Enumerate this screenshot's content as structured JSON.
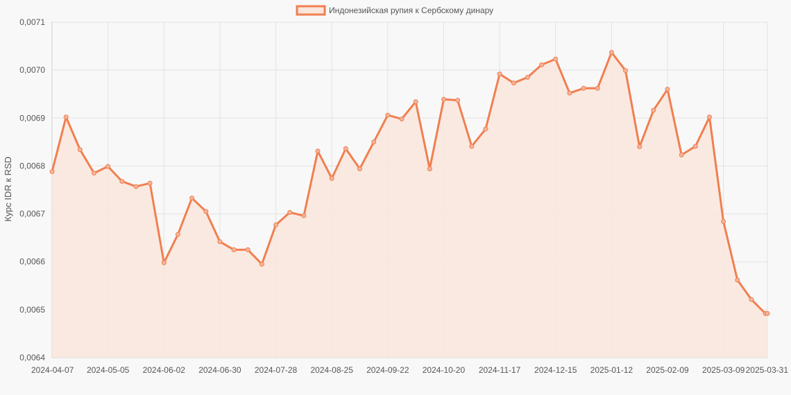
{
  "legend": {
    "label": "Индонезийская рупия к Сербскому динару"
  },
  "colors": {
    "line": "#f07f50",
    "fill": "#fae6dc",
    "point_fill": "#f6b49a"
  },
  "chart_data": {
    "type": "area",
    "title": "",
    "xlabel": "",
    "ylabel": "Курс IDR к RSD",
    "ylim": [
      0.0064,
      0.0071
    ],
    "yticks": [
      "0,0064",
      "0,0065",
      "0,0066",
      "0,0067",
      "0,0068",
      "0,0069",
      "0,0070",
      "0,0071"
    ],
    "xticks": [
      "2024-04-07",
      "2024-05-05",
      "2024-06-02",
      "2024-06-30",
      "2024-07-28",
      "2024-08-25",
      "2024-09-22",
      "2024-10-20",
      "2024-11-17",
      "2024-12-15",
      "2025-01-12",
      "2025-02-09",
      "2025-03-09",
      "2025-03-31"
    ],
    "grid": true,
    "legend_position": "top-center",
    "series": [
      {
        "name": "Индонезийская рупия к Сербскому динару",
        "x": [
          "2024-04-07",
          "2024-04-14",
          "2024-04-21",
          "2024-04-28",
          "2024-05-05",
          "2024-05-12",
          "2024-05-19",
          "2024-05-26",
          "2024-06-02",
          "2024-06-09",
          "2024-06-16",
          "2024-06-23",
          "2024-06-30",
          "2024-07-07",
          "2024-07-14",
          "2024-07-21",
          "2024-07-28",
          "2024-08-04",
          "2024-08-11",
          "2024-08-18",
          "2024-08-25",
          "2024-09-01",
          "2024-09-08",
          "2024-09-15",
          "2024-09-22",
          "2024-09-29",
          "2024-10-06",
          "2024-10-13",
          "2024-10-20",
          "2024-10-27",
          "2024-11-03",
          "2024-11-10",
          "2024-11-17",
          "2024-11-24",
          "2024-12-01",
          "2024-12-08",
          "2024-12-15",
          "2024-12-22",
          "2024-12-29",
          "2025-01-05",
          "2025-01-12",
          "2025-01-19",
          "2025-01-26",
          "2025-02-02",
          "2025-02-09",
          "2025-02-16",
          "2025-02-23",
          "2025-03-02",
          "2025-03-09",
          "2025-03-16",
          "2025-03-23",
          "2025-03-30",
          "2025-03-31"
        ],
        "values": [
          0.006788,
          0.006902,
          0.006834,
          0.006785,
          0.006799,
          0.006768,
          0.006757,
          0.006764,
          0.006598,
          0.006657,
          0.006733,
          0.006705,
          0.006642,
          0.006625,
          0.006625,
          0.006595,
          0.006677,
          0.006703,
          0.006696,
          0.006831,
          0.006774,
          0.006836,
          0.006794,
          0.00685,
          0.006906,
          0.006898,
          0.006934,
          0.006794,
          0.006939,
          0.006937,
          0.006841,
          0.006877,
          0.006992,
          0.006973,
          0.006985,
          0.007011,
          0.007023,
          0.006952,
          0.006962,
          0.006962,
          0.007037,
          0.006999,
          0.00684,
          0.006916,
          0.00696,
          0.006823,
          0.006841,
          0.006902,
          0.006684,
          0.006562,
          0.006521,
          0.006492,
          0.006492
        ]
      }
    ]
  }
}
